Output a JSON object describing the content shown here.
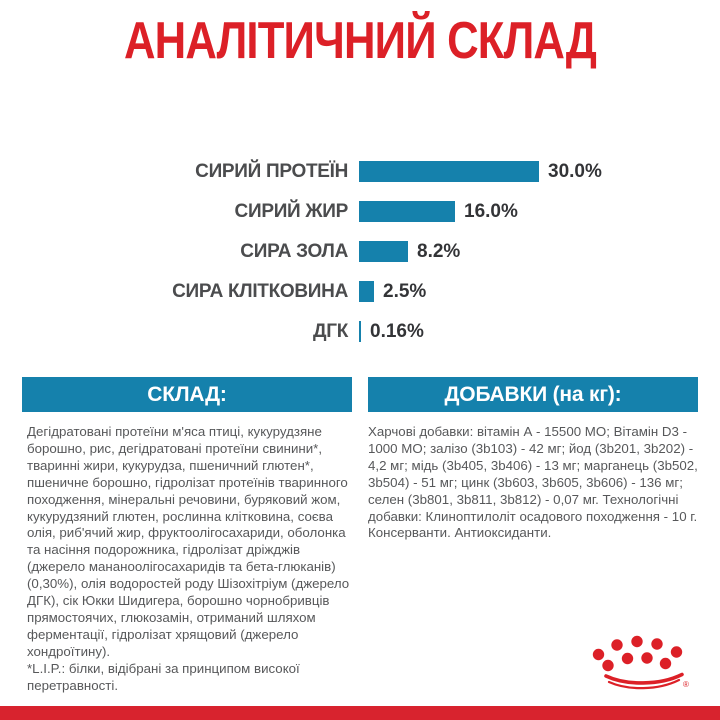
{
  "page": {
    "title": "АНАЛІТИЧНИЙ СКЛАД"
  },
  "chart_data": {
    "type": "bar",
    "orientation": "horizontal",
    "categories": [
      "СИРИЙ ПРОТЕЇН",
      "СИРИЙ ЖИР",
      "СИРА ЗОЛА",
      "СИРА КЛІТКОВИНА",
      "ДГК"
    ],
    "values": [
      30.0,
      16.0,
      8.2,
      2.5,
      0.16
    ],
    "value_labels": [
      "30.0%",
      "16.0%",
      "8.2%",
      "2.5%",
      "0.16%"
    ],
    "unit": "%",
    "xlim": [
      0,
      30
    ],
    "grid": false,
    "legend": "none",
    "bar_color": "#1581ac"
  },
  "sections": {
    "composition": {
      "header": "СКЛАД:",
      "body": "Дегідратовані протеїни м'яса птиці, кукурудзяне борошно, рис, дегідратовані протеїни свинини*, тваринні жири, кукурудза, пшеничний глютен*, пшеничне борошно, гідролізат протеїнів тваринного походження, мінеральні речовини, буряковий жом, кукурудзяний глютен, рослинна клітковина, соєва олія, риб'ячий жир, фруктоолігосахариди, оболонка та насіння подорожника, гідролізат дріжджів (джерело мананоолігосахаридів та бета-глюканів) (0,30%), олія водоростей роду Шізохітріум (джерело ДГК), сік Юкки Шидигера, борошно чорнобривців прямостоячих, глюкозамін, отриманий шляхом ферментації, гідролізат хрящовий (джерело хондроїтину).",
      "footnote": "*L.I.P.: білки, відібрані за принципом високої перетравності."
    },
    "additives": {
      "header": "ДОБАВКИ (на кг):",
      "body": "Харчові добавки: вітамін А - 15500 МО; Вітамін D3 - 1000 МО; залізо (3b103) - 42 мг; йод (3b201, 3b202) - 4,2 мг; мідь (3b405, 3b406) - 13 мг; марганець (3b502, 3b504) - 51 мг; цинк (3b603, 3b605, 3b606) - 136 мг; селен (3b801, 3b811, 3b812) - 0,07 мг. Технологічні добавки: Клиноптилоліт осадового походження - 10 г. Консерванти. Антиоксиданти."
    }
  },
  "branding": {
    "logo": "royal-canin-crown",
    "registered_mark": "®",
    "brand_red": "#dc2027",
    "accent_blue": "#1581ac",
    "footer_bar_red": "#d8232e"
  }
}
